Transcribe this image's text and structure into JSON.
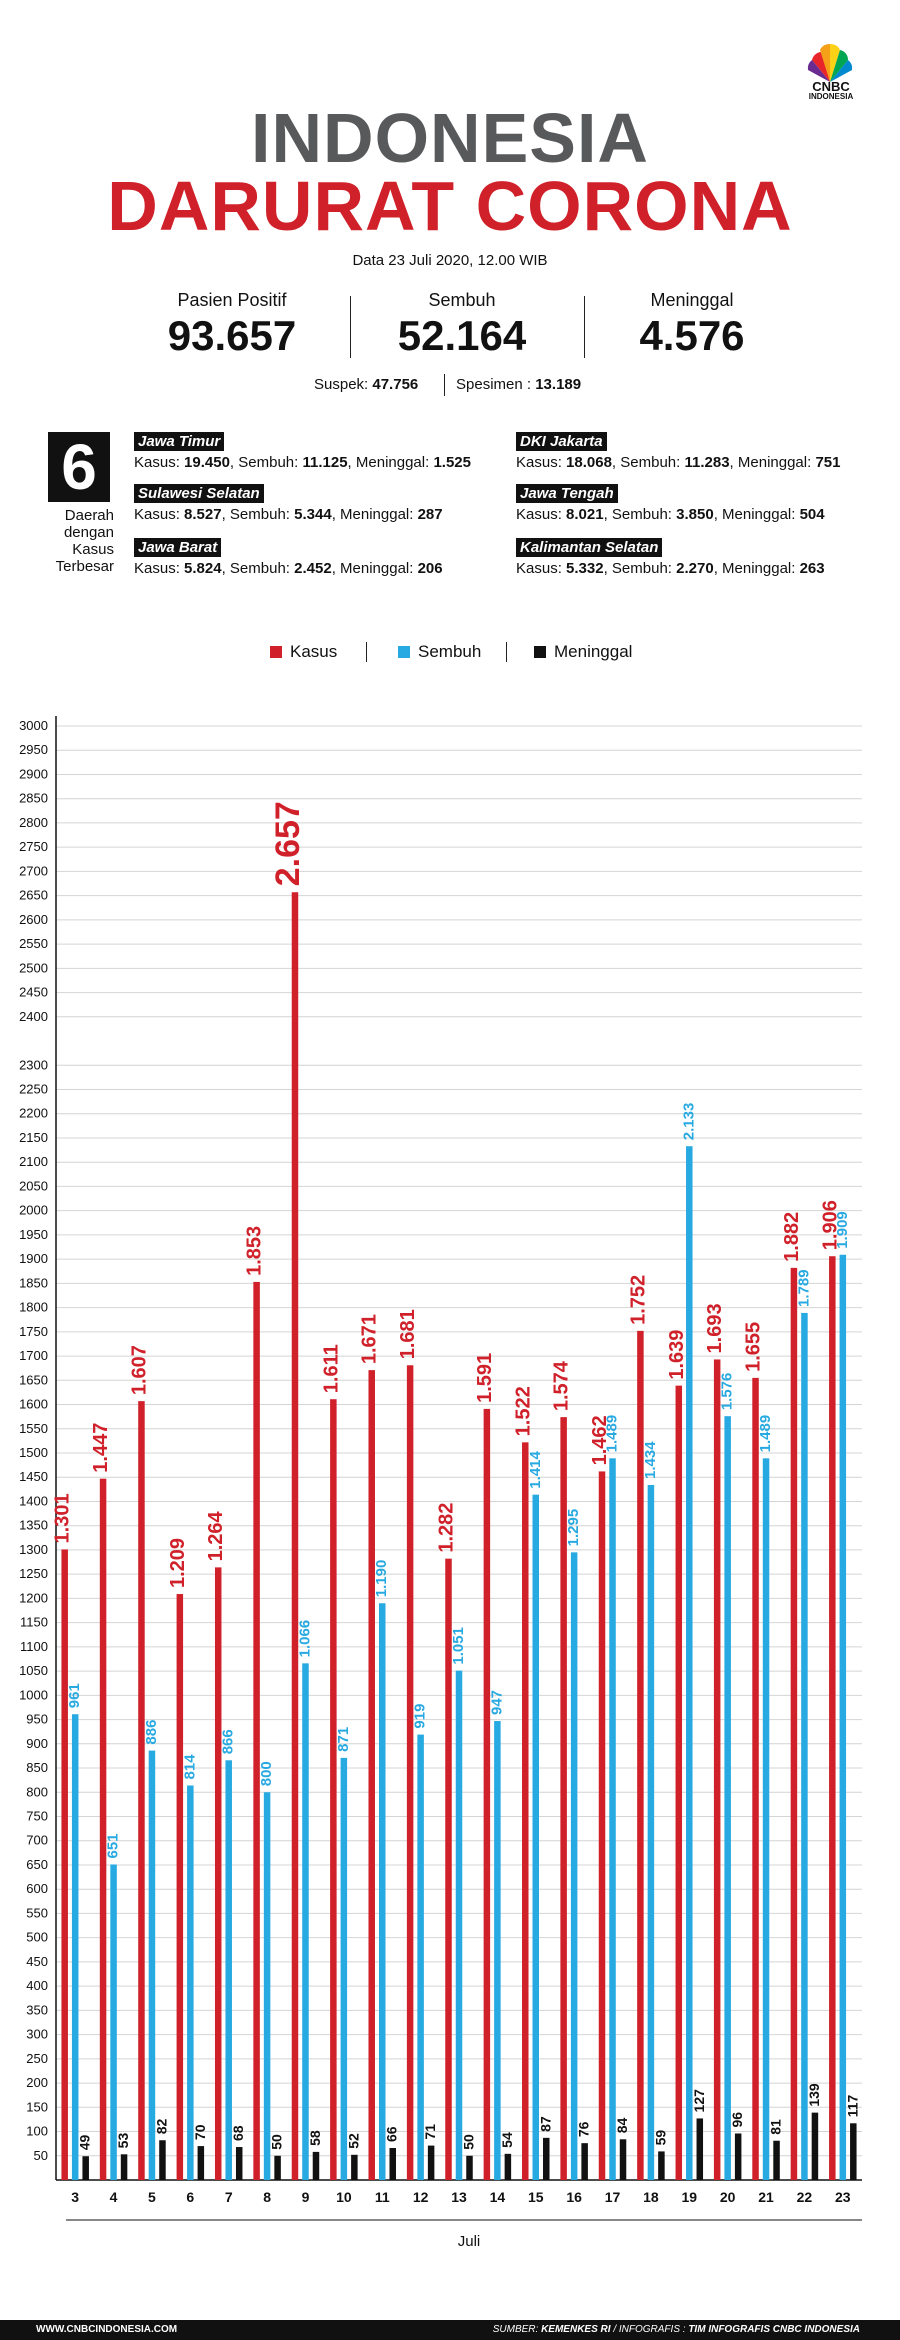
{
  "logo": {
    "name": "CNBC",
    "sub": "INDONESIA"
  },
  "header": {
    "title_line1": "INDONESIA",
    "title_line2": "DARURAT CORONA",
    "date": "Data 23 Juli 2020, 12.00 WIB"
  },
  "stats": [
    {
      "label": "Pasien Positif",
      "value": "93.657"
    },
    {
      "label": "Sembuh",
      "value": "52.164"
    },
    {
      "label": "Meninggal",
      "value": "4.576"
    }
  ],
  "suspek": {
    "label": "Suspek:",
    "value": "47.756",
    "spesimen_label": "Spesimen :",
    "spesimen_value": "13.189"
  },
  "regions_box": {
    "number": "6",
    "caption": [
      "Daerah",
      "dengan",
      "Kasus",
      "Terbesar"
    ]
  },
  "regions": [
    {
      "name": "Jawa Timur",
      "kasus": "19.450",
      "sembuh": "11.125",
      "meninggal": "1.525"
    },
    {
      "name": "Sulawesi Selatan",
      "kasus": "8.527",
      "sembuh": "5.344",
      "meninggal": "287"
    },
    {
      "name": "Jawa Barat",
      "kasus": "5.824",
      "sembuh": "2.452",
      "meninggal": "206"
    },
    {
      "name": "DKI Jakarta",
      "kasus": "18.068",
      "sembuh": "11.283",
      "meninggal": "751"
    },
    {
      "name": "Jawa Tengah",
      "kasus": "8.021",
      "sembuh": "3.850",
      "meninggal": "504"
    },
    {
      "name": "Kalimantan Selatan",
      "kasus": "5.332",
      "sembuh": "2.270",
      "meninggal": "263"
    }
  ],
  "region_labels": {
    "kasus": "Kasus:",
    "sembuh": "Sembuh:",
    "meninggal": "Meninggal:"
  },
  "legend": [
    {
      "label": "Kasus",
      "color": "#d0212a"
    },
    {
      "label": "Sembuh",
      "color": "#27a9e1"
    },
    {
      "label": "Meninggal",
      "color": "#111111"
    }
  ],
  "chart_data": {
    "type": "bar",
    "xlabel": "Juli",
    "ylim": [
      0,
      3000
    ],
    "y_ticks": [
      50,
      100,
      150,
      200,
      250,
      300,
      350,
      400,
      450,
      500,
      550,
      600,
      650,
      700,
      750,
      800,
      850,
      900,
      950,
      1000,
      1050,
      1100,
      1150,
      1200,
      1250,
      1300,
      1350,
      1400,
      1450,
      1500,
      1550,
      1600,
      1650,
      1700,
      1750,
      1800,
      1850,
      1900,
      1950,
      2000,
      2050,
      2100,
      2150,
      2200,
      2250,
      2300,
      2400,
      2450,
      2500,
      2550,
      2600,
      2650,
      2700,
      2750,
      2800,
      2850,
      2900,
      2950,
      3000
    ],
    "categories": [
      "3",
      "4",
      "5",
      "6",
      "7",
      "8",
      "9",
      "10",
      "11",
      "12",
      "13",
      "14",
      "15",
      "16",
      "17",
      "18",
      "19",
      "20",
      "21",
      "22",
      "23"
    ],
    "series": [
      {
        "name": "Kasus",
        "color": "#d0212a",
        "values": [
          1301,
          1447,
          1607,
          1209,
          1264,
          1853,
          2657,
          1611,
          1671,
          1681,
          1282,
          1591,
          1522,
          1574,
          1462,
          1752,
          1639,
          1693,
          1655,
          1882,
          1906
        ],
        "labels": [
          "1.301",
          "1.447",
          "1.607",
          "1.209",
          "1.264",
          "1.853",
          "2.657",
          "1.611",
          "1.671",
          "1.681",
          "1.282",
          "1.591",
          "1.522",
          "1.574",
          "1.462",
          "1.752",
          "1.639",
          "1.693",
          "1.655",
          "1.882",
          "1.906"
        ]
      },
      {
        "name": "Sembuh",
        "color": "#27a9e1",
        "values": [
          961,
          651,
          886,
          814,
          866,
          800,
          1066,
          871,
          1190,
          919,
          1051,
          947,
          1414,
          1295,
          1489,
          1434,
          2133,
          1576,
          1489,
          1789,
          1909
        ],
        "labels": [
          "961",
          "651",
          "886",
          "814",
          "866",
          "800",
          "1.066",
          "871",
          "1.190",
          "919",
          "1.051",
          "947",
          "1.414",
          "1.295",
          "1.489",
          "1.434",
          "2.133",
          "1.576",
          "1.489",
          "1.789",
          "1.909"
        ]
      },
      {
        "name": "Meninggal",
        "color": "#111111",
        "values": [
          49,
          53,
          82,
          70,
          68,
          50,
          58,
          52,
          66,
          71,
          50,
          54,
          87,
          76,
          84,
          59,
          127,
          96,
          81,
          139,
          117
        ],
        "labels": [
          "49",
          "53",
          "82",
          "70",
          "68",
          "50",
          "58",
          "52",
          "66",
          "71",
          "50",
          "54",
          "87",
          "76",
          "84",
          "59",
          "127",
          "96",
          "81",
          "139",
          "117"
        ]
      }
    ]
  },
  "footer": {
    "site": "WWW.CNBCINDONESIA.COM",
    "source_label": "SUMBER:",
    "source": "KEMENKES RI",
    "infographic_label": "/ INFOGRAFIS :",
    "infographic": "TIM INFOGRAFIS CNBC INDONESIA"
  }
}
